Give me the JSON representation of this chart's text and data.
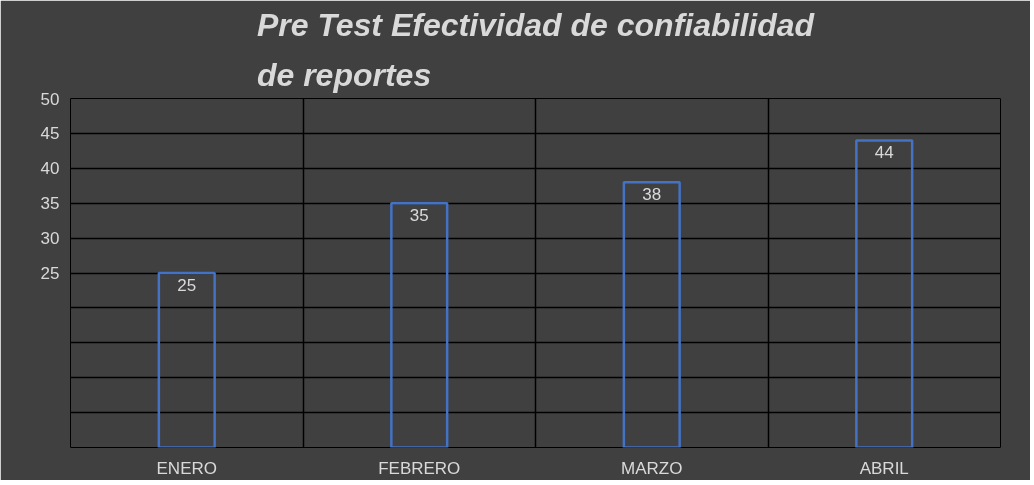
{
  "chart_data": {
    "type": "bar",
    "title": "Pre Test Efectividad de confiabilidad\nde reportes",
    "categories": [
      "ENERO",
      "FEBRERO",
      "MARZO",
      "ABRIL"
    ],
    "values": [
      25,
      35,
      38,
      44
    ],
    "color": "#4472c4",
    "data_labels": true,
    "ylim": [
      0,
      50
    ],
    "yticks": [
      {
        "value": 0,
        "label": null
      },
      {
        "value": 5,
        "label": null
      },
      {
        "value": 10,
        "label": null
      },
      {
        "value": 15,
        "label": null
      },
      {
        "value": 20,
        "label": null
      },
      25,
      30,
      35,
      40,
      45,
      50
    ],
    "grid": true
  }
}
